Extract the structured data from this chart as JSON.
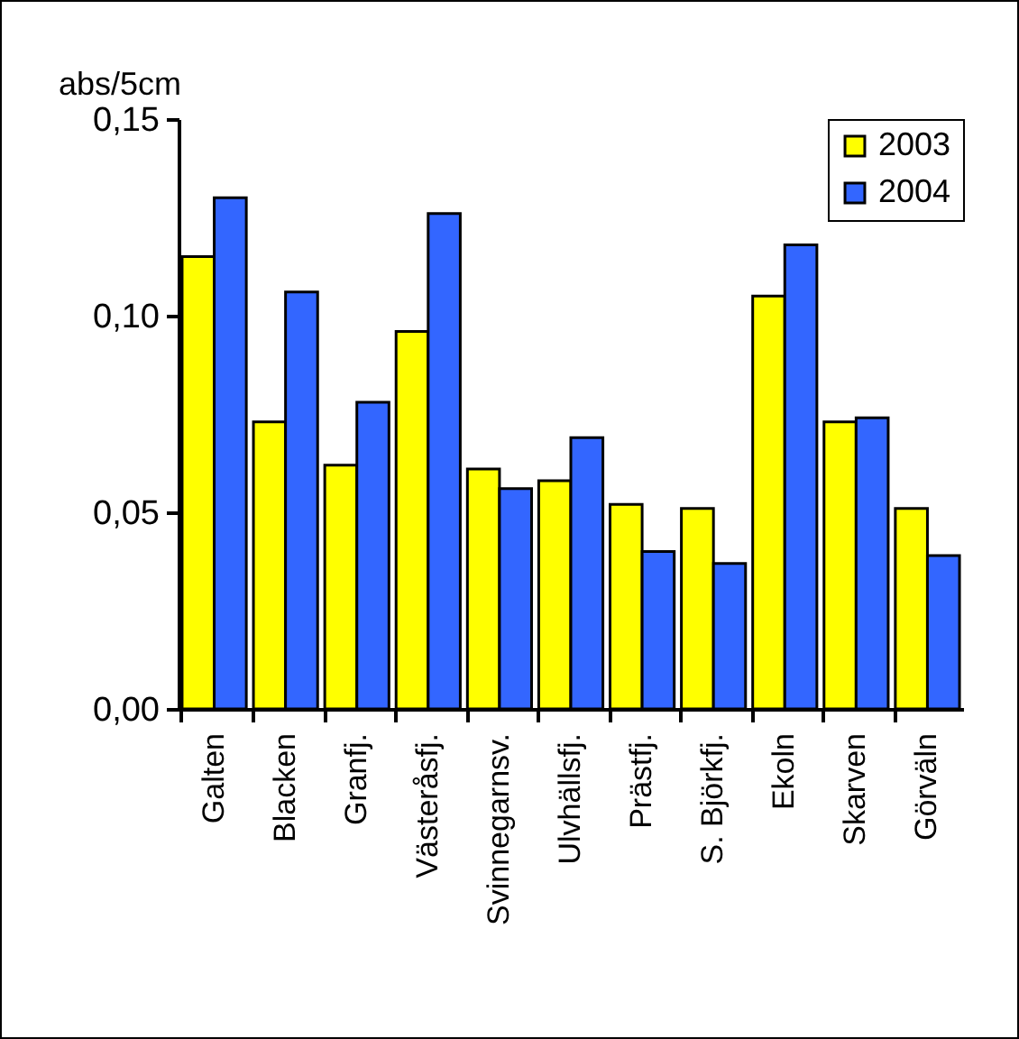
{
  "chart_data": {
    "type": "bar",
    "ylabel": "abs/5cm",
    "categories": [
      "Galten",
      "Blacken",
      "Granfj.",
      "Västeråsfj.",
      "Svinnegarnsv.",
      "Ulvhällsfj.",
      "Prästfj.",
      "S. Björkfj.",
      "Ekoln",
      "Skarven",
      "Görväln"
    ],
    "series": [
      {
        "name": "2003",
        "color": "#ffff00",
        "values": [
          0.115,
          0.073,
          0.062,
          0.096,
          0.061,
          0.058,
          0.052,
          0.051,
          0.105,
          0.073,
          0.051
        ]
      },
      {
        "name": "2004",
        "color": "#3366ff",
        "values": [
          0.13,
          0.106,
          0.078,
          0.126,
          0.056,
          0.069,
          0.04,
          0.037,
          0.118,
          0.074,
          0.039
        ]
      }
    ],
    "ylim": [
      0,
      0.15
    ],
    "yticks": [
      {
        "value": 0,
        "label": "0,00"
      },
      {
        "value": 0.05,
        "label": "0,05"
      },
      {
        "value": 0.1,
        "label": "0,10"
      },
      {
        "value": 0.15,
        "label": "0,15"
      }
    ],
    "grid": false,
    "legend": "top right"
  }
}
